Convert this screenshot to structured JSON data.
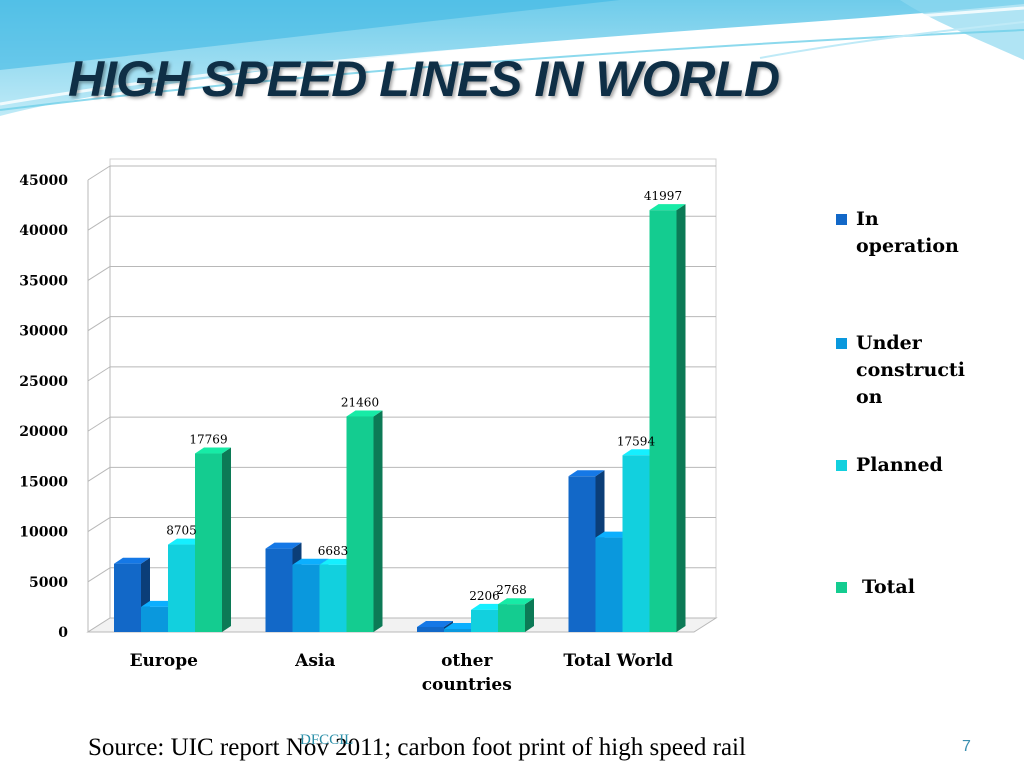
{
  "slide": {
    "title": "HIGH SPEED LINES IN WORLD",
    "source": "Source: UIC report Nov 2011; carbon foot print of high speed rail",
    "footer_mark": "DFCCIL",
    "page_number": "7"
  },
  "chart_data": {
    "type": "bar",
    "categories": [
      "Europe",
      "Asia",
      "other countries",
      "Total World"
    ],
    "series": [
      {
        "name": "In operation",
        "values": [
          6800,
          8300,
          500,
          15500
        ],
        "color": "#1268c8"
      },
      {
        "name": "Under construction",
        "values": [
          2500,
          6700,
          300,
          9400
        ],
        "color": "#0a98dd"
      },
      {
        "name": "Planned",
        "values": [
          8705,
          6683,
          2206,
          17594
        ],
        "color": "#12d0de"
      },
      {
        "name": "Total",
        "values": [
          17769,
          21460,
          2768,
          41997
        ],
        "color": "#14cc90"
      }
    ],
    "data_labels": [
      {
        "series": 2,
        "category": 0,
        "text": "8705"
      },
      {
        "series": 3,
        "category": 0,
        "text": "17769"
      },
      {
        "series": 2,
        "category": 1,
        "text": "6683"
      },
      {
        "series": 3,
        "category": 1,
        "text": "21460"
      },
      {
        "series": 2,
        "category": 2,
        "text": "2206"
      },
      {
        "series": 3,
        "category": 2,
        "text": "2768"
      },
      {
        "series": 2,
        "category": 3,
        "text": "17594"
      },
      {
        "series": 3,
        "category": 3,
        "text": "41997"
      }
    ],
    "yticks": [
      "0",
      "5000",
      "10000",
      "15000",
      "20000",
      "25000",
      "30000",
      "35000",
      "40000",
      "45000"
    ],
    "ylim": [
      0,
      45000
    ],
    "grid": true,
    "legend_position": "right",
    "style": "3d-clustered-column"
  }
}
